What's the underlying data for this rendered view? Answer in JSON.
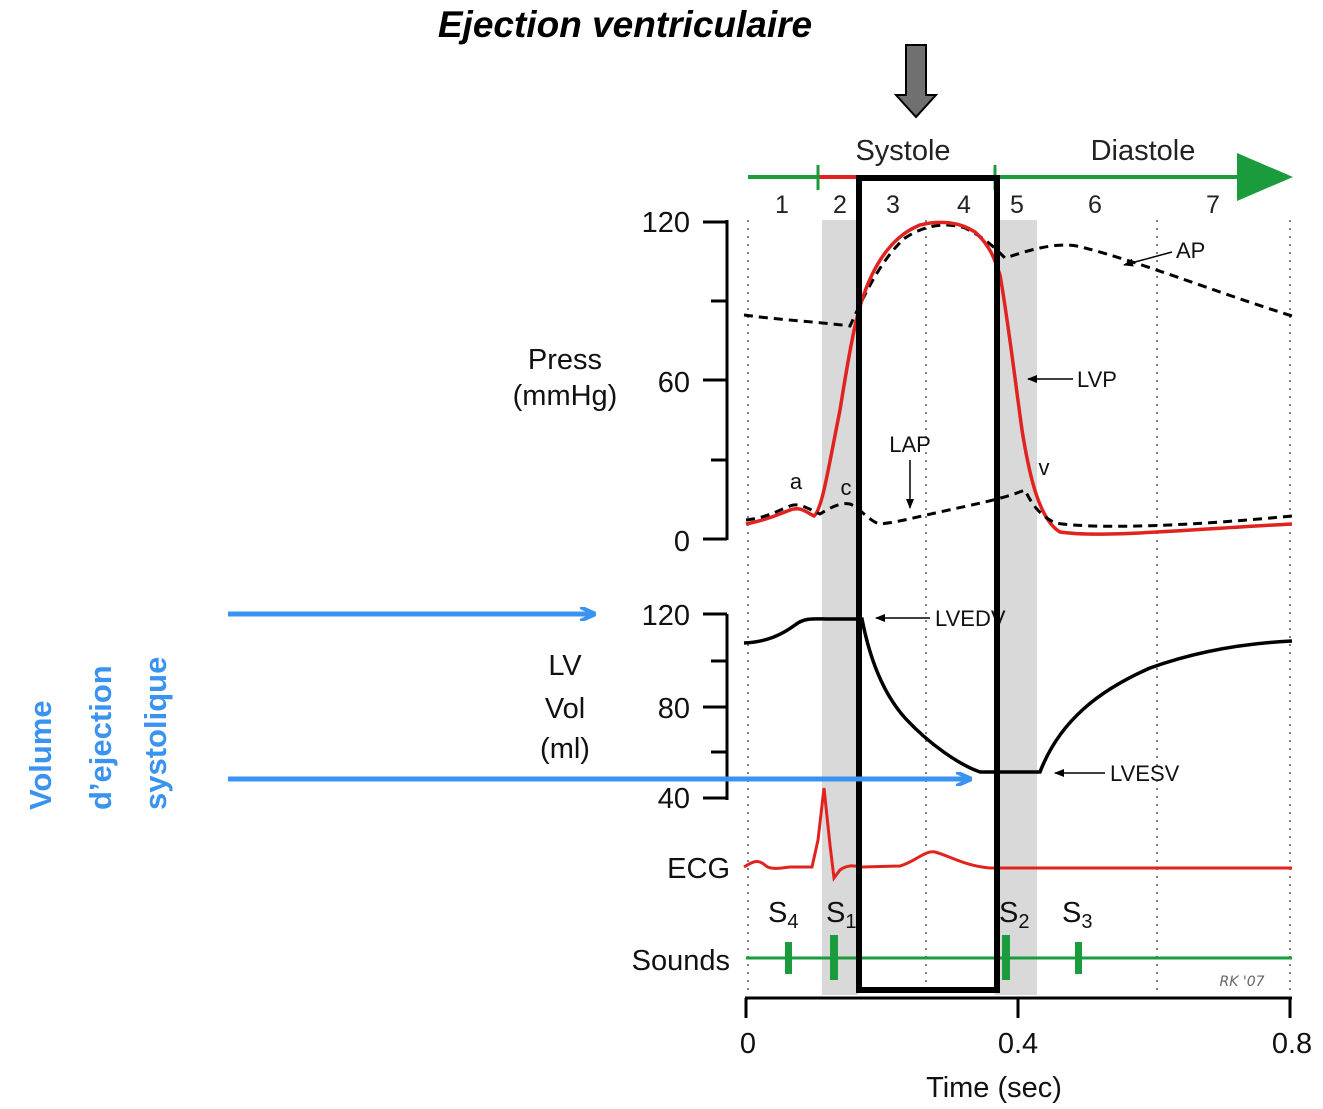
{
  "title": "Ejection ventriculaire",
  "side_label": {
    "lines": [
      "Volume",
      "d’ejection",
      "systolique"
    ],
    "color": "#3a93f0"
  },
  "phases": {
    "systole": "Systole",
    "diastole": "Diastole",
    "numbers": [
      "1",
      "2",
      "3",
      "4",
      "5",
      "6",
      "7"
    ]
  },
  "pressure_panel": {
    "ylabel_line1": "Press",
    "ylabel_line2": "(mmHg)",
    "ticks": [
      "120",
      "60",
      "0"
    ],
    "labels": {
      "ap": "AP",
      "lvp": "LVP",
      "lap": "LAP",
      "a": "a",
      "c": "c",
      "v": "v"
    }
  },
  "volume_panel": {
    "ylabel_line1": "LV",
    "ylabel_line2": "Vol",
    "ylabel_line3": "(ml)",
    "ticks": [
      "120",
      "80",
      "40"
    ],
    "labels": {
      "lvedv": "LVEDV",
      "lvesv": "LVESV"
    }
  },
  "ecg_label": "ECG",
  "sounds": {
    "label": "Sounds",
    "s4": "S",
    "s4_sub": "4",
    "s1": "S",
    "s1_sub": "1",
    "s2": "S",
    "s2_sub": "2",
    "s3": "S",
    "s3_sub": "3"
  },
  "time_axis": {
    "xlabel": "Time (sec)",
    "ticks": [
      "0",
      "0.4",
      "0.8"
    ]
  },
  "signature": "RK '07",
  "colors": {
    "red": "#e0231f",
    "green": "#1a9c3c",
    "blue": "#3a93f0",
    "gray_band": "#d9d9d9",
    "arrow_gray": "#707070"
  }
}
